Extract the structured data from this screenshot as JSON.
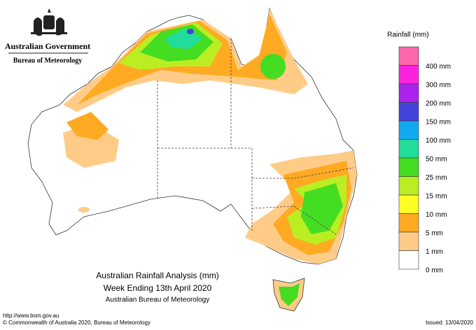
{
  "header": {
    "government": "Australian Government",
    "bureau": "Bureau of Meteorology"
  },
  "legend": {
    "title": "Rainfall (mm)",
    "items": [
      {
        "label": "400 mm",
        "color": "#ff66aa"
      },
      {
        "label": "300 mm",
        "color": "#ff22dd"
      },
      {
        "label": "200 mm",
        "color": "#aa22ee"
      },
      {
        "label": "150 mm",
        "color": "#4444dd"
      },
      {
        "label": "100 mm",
        "color": "#11aaee"
      },
      {
        "label": "50 mm",
        "color": "#22dd99"
      },
      {
        "label": "25 mm",
        "color": "#44dd22"
      },
      {
        "label": "15 mm",
        "color": "#bbee22"
      },
      {
        "label": "10 mm",
        "color": "#ffff22"
      },
      {
        "label": "5 mm",
        "color": "#ffaa22"
      },
      {
        "label": "1 mm",
        "color": "#ffcc88"
      },
      {
        "label": "0 mm",
        "color": "#ffffff"
      }
    ]
  },
  "caption": {
    "title": "Australian Rainfall Analysis (mm)",
    "subtitle": "Week Ending 13th April 2020",
    "source": "Australian Bureau of Meteorology"
  },
  "footer": {
    "url": "http://www.bom.gov.au",
    "copyright": "© Commonwealth of Australia 2020, Bureau of Meteorology",
    "issued": "Issued: 13/04/2020"
  }
}
